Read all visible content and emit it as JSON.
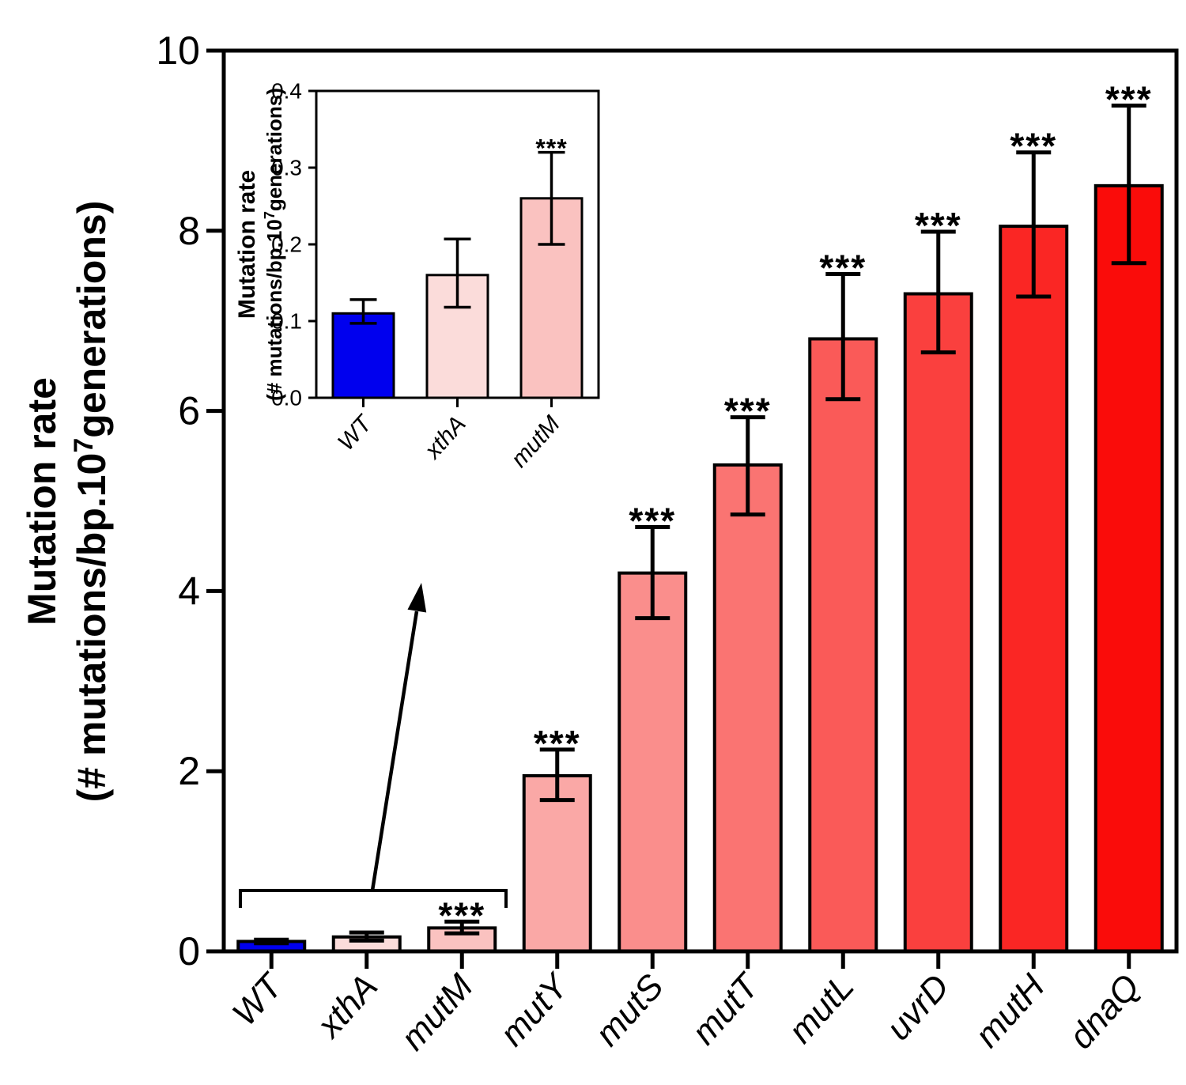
{
  "figure": {
    "background": "#ffffff"
  },
  "chart_data": {
    "type": "bar",
    "title": "",
    "ylabel_line1": "Mutation rate",
    "ylabel_line2_pre": "(# mutations/bp.10",
    "ylabel_sup": "7",
    "ylabel_line2_post": "generations)",
    "ylim": [
      0,
      10
    ],
    "yticks": [
      "0",
      "2",
      "4",
      "6",
      "8",
      "10"
    ],
    "grid": false,
    "legend": false,
    "categories": [
      "WT",
      "xthA",
      "mutM",
      "mutY",
      "mutS",
      "mutT",
      "mutL",
      "uvrD",
      "mutH",
      "dnaQ"
    ],
    "values": [
      0.11,
      0.16,
      0.26,
      1.95,
      4.2,
      5.4,
      6.8,
      7.3,
      8.05,
      8.5
    ],
    "error_low": [
      0.09,
      0.12,
      0.2,
      1.68,
      3.7,
      4.85,
      6.13,
      6.65,
      7.27,
      7.64
    ],
    "error_high": [
      0.13,
      0.21,
      0.33,
      2.24,
      4.71,
      5.93,
      7.52,
      7.99,
      8.87,
      9.39
    ],
    "significance": [
      "",
      "",
      "***",
      "***",
      "***",
      "***",
      "***",
      "***",
      "***",
      "***"
    ],
    "bar_colors": [
      "#0000EE",
      "#FBDCDA",
      "#FAC2C0",
      "#FAA8A6",
      "#FA8E8C",
      "#FA7472",
      "#FA5A58",
      "#FA403E",
      "#FA2624",
      "#FA0C0A"
    ],
    "bar_edge_color": "#000000",
    "annotation": {
      "type": "bracket-arrow",
      "bracket_span_categories": [
        "WT",
        "xthA",
        "mutM"
      ],
      "points_to": "inset"
    },
    "inset": {
      "type": "bar",
      "ylabel_line1": "Mutation rate",
      "ylabel_line2_pre": "(# mutations/bp.10",
      "ylabel_sup": "7",
      "ylabel_line2_post": "generations)",
      "ylim": [
        0,
        0.4
      ],
      "yticks": [
        "0.0",
        "0.1",
        "0.2",
        "0.3",
        "0.4"
      ],
      "categories": [
        "WT",
        "xthA",
        "mutM"
      ],
      "values": [
        0.11,
        0.16,
        0.26
      ],
      "error_low": [
        0.097,
        0.118,
        0.2
      ],
      "error_high": [
        0.128,
        0.207,
        0.32
      ],
      "significance": [
        "",
        "",
        "***"
      ],
      "bar_colors": [
        "#0000EE",
        "#FBDCDA",
        "#FAC2C0"
      ],
      "bar_edge_color": "#000000"
    }
  }
}
